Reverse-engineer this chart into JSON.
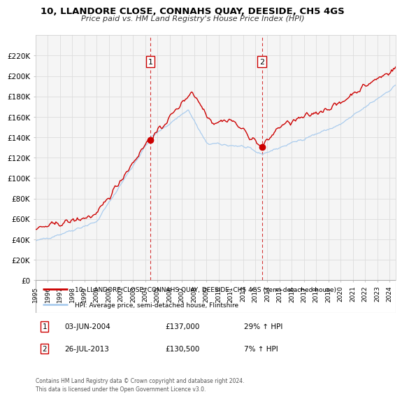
{
  "title": "10, LLANDORE CLOSE, CONNAHS QUAY, DEESIDE, CH5 4GS",
  "subtitle": "Price paid vs. HM Land Registry's House Price Index (HPI)",
  "red_label": "10, LLANDORE CLOSE, CONNAHS QUAY, DEESIDE, CH5 4GS (semi-detached house)",
  "blue_label": "HPI: Average price, semi-detached house, Flintshire",
  "annotation1_date": "03-JUN-2004",
  "annotation1_price": "£137,000",
  "annotation1_hpi": "29% ↑ HPI",
  "annotation2_date": "26-JUL-2013",
  "annotation2_price": "£130,500",
  "annotation2_hpi": "7% ↑ HPI",
  "marker1_x": 2004.42,
  "marker1_y": 137000,
  "marker2_x": 2013.56,
  "marker2_y": 130500,
  "vline1_x": 2004.42,
  "vline2_x": 2013.56,
  "footer": "Contains HM Land Registry data © Crown copyright and database right 2024.\nThis data is licensed under the Open Government Licence v3.0.",
  "ylim_min": 0,
  "ylim_max": 240000,
  "xlim_min": 1995.0,
  "xlim_max": 2024.5,
  "yticks": [
    0,
    20000,
    40000,
    60000,
    80000,
    100000,
    120000,
    140000,
    160000,
    180000,
    200000,
    220000
  ],
  "ytick_labels": [
    "£0",
    "£20K",
    "£40K",
    "£60K",
    "£80K",
    "£100K",
    "£120K",
    "£140K",
    "£160K",
    "£180K",
    "£200K",
    "£220K"
  ],
  "xticks": [
    1995,
    1996,
    1997,
    1998,
    1999,
    2000,
    2001,
    2002,
    2003,
    2004,
    2005,
    2006,
    2007,
    2008,
    2009,
    2010,
    2011,
    2012,
    2013,
    2014,
    2015,
    2016,
    2017,
    2018,
    2019,
    2020,
    2021,
    2022,
    2023,
    2024
  ],
  "red_color": "#cc0000",
  "blue_color": "#aaccee",
  "marker_color": "#cc0000",
  "vline_color": "#cc0000",
  "grid_color": "#dddddd",
  "bg_color": "#ffffff",
  "plot_bg_color": "#f5f5f5",
  "legend_box_color": "#cc0000",
  "legend_border_color": "#999999",
  "num_box_color": "#cc0000"
}
